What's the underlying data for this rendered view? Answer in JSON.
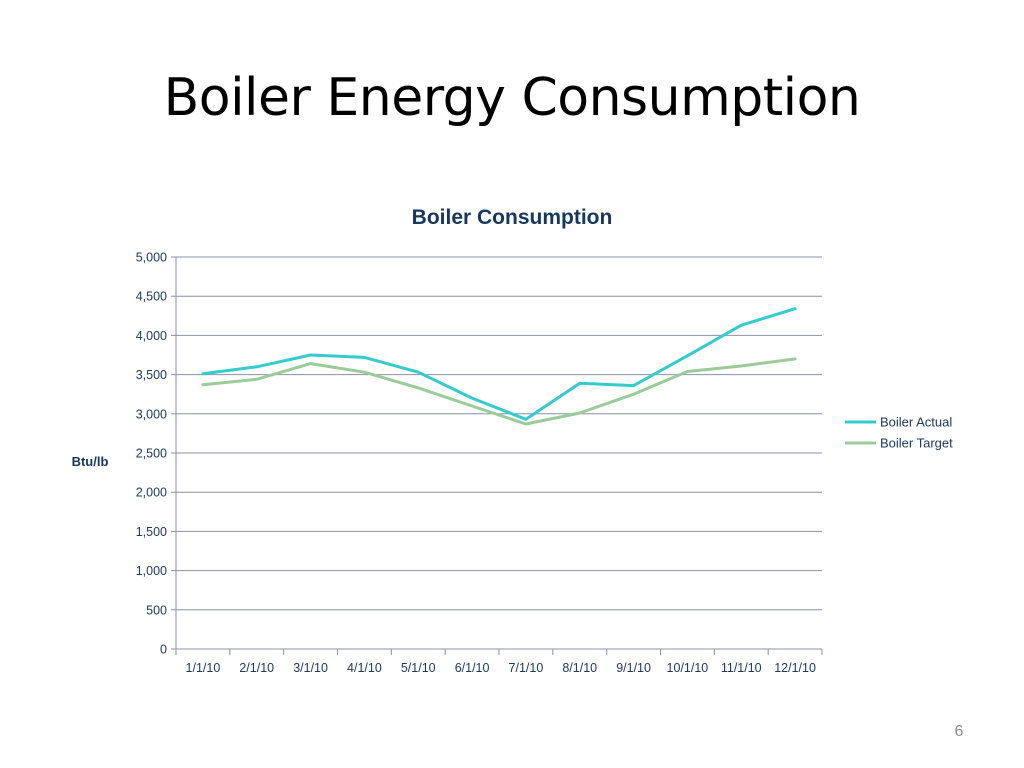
{
  "slide": {
    "title": "Boiler Energy Consumption",
    "page_number": "6"
  },
  "chart_data": {
    "type": "line",
    "title": "Boiler Consumption",
    "xlabel": "",
    "ylabel": "Btu/lb",
    "categories": [
      "1/1/10",
      "2/1/10",
      "3/1/10",
      "4/1/10",
      "5/1/10",
      "6/1/10",
      "7/1/10",
      "8/1/10",
      "9/1/10",
      "10/1/10",
      "11/1/10",
      "12/1/10"
    ],
    "ylim": [
      0,
      5000
    ],
    "yticks": [
      0,
      500,
      1000,
      1500,
      2000,
      2500,
      3000,
      3500,
      4000,
      4500,
      5000
    ],
    "ytick_labels": [
      "0",
      "500",
      "1,000",
      "1,500",
      "2,000",
      "2,500",
      "3,000",
      "3,500",
      "4,000",
      "4,500",
      "5,000"
    ],
    "grid": true,
    "legend_position": "right",
    "series": [
      {
        "name": "Boiler Actual",
        "color": "#33CCCC",
        "values": [
          3510,
          3600,
          3750,
          3720,
          3530,
          3200,
          2930,
          3390,
          3360,
          3740,
          4130,
          4340
        ]
      },
      {
        "name": "Boiler Target",
        "color": "#99CC99",
        "values": [
          3370,
          3440,
          3640,
          3530,
          3330,
          3100,
          2870,
          3010,
          3250,
          3540,
          3610,
          3700
        ]
      }
    ]
  }
}
